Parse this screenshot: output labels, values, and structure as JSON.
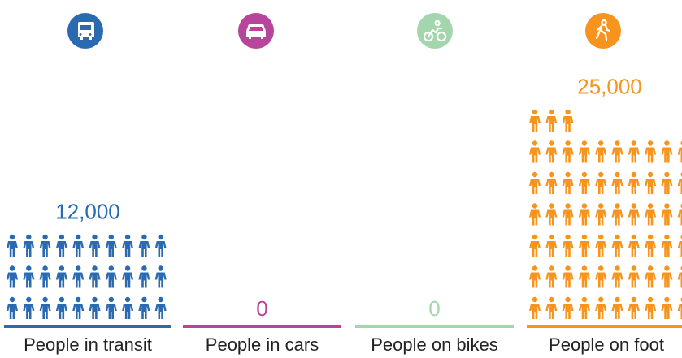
{
  "chart_data": {
    "type": "pictogram",
    "categories": [
      "People in transit",
      "People in cars",
      "People on bikes",
      "People on foot"
    ],
    "values": [
      12000,
      0,
      0,
      25000
    ],
    "value_labels": [
      "12,000",
      "0",
      "0",
      "25,000"
    ],
    "colors": [
      "#2a6ab1",
      "#b8449b",
      "#a3d6ad",
      "#f7941d"
    ]
  }
}
